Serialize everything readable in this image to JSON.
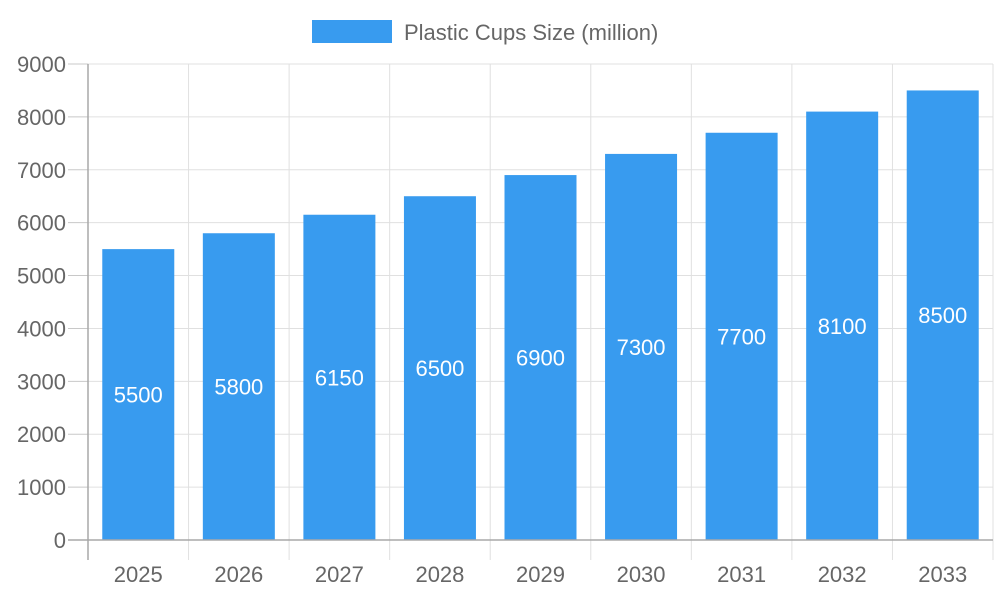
{
  "chart_data": {
    "type": "bar",
    "title": "",
    "xlabel": "",
    "ylabel": "",
    "categories": [
      "2025",
      "2026",
      "2027",
      "2028",
      "2029",
      "2030",
      "2031",
      "2032",
      "2033"
    ],
    "series": [
      {
        "name": "Plastic Cups Size (million)",
        "values": [
          5500,
          5800,
          6150,
          6500,
          6900,
          7300,
          7700,
          8100,
          8500
        ],
        "color": "#389BEF"
      }
    ],
    "ylim": [
      0,
      9000
    ],
    "yticks": [
      0,
      1000,
      2000,
      3000,
      4000,
      5000,
      6000,
      7000,
      8000,
      9000
    ],
    "grid": true,
    "legend_position": "top",
    "data_labels": true
  }
}
